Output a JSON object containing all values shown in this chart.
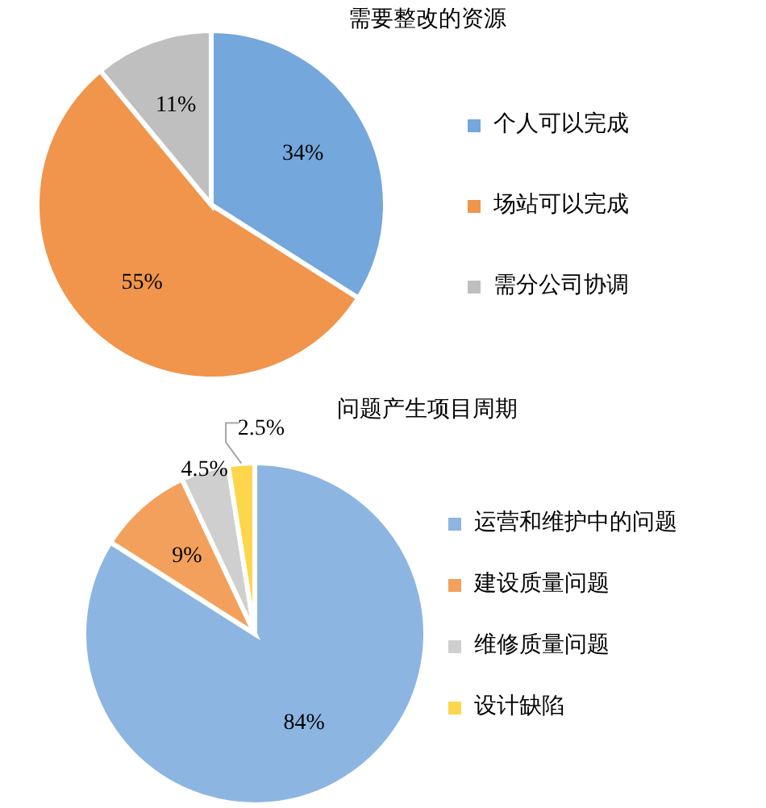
{
  "chart_data": [
    {
      "type": "pie",
      "title": "需要整改的资源",
      "categories": [
        "个人可以完成",
        "场站可以完成",
        "需分公司协调"
      ],
      "values": [
        34,
        55,
        11
      ],
      "colors": [
        "#74a7db",
        "#f0954b",
        "#bfbfbf"
      ],
      "value_labels": [
        "34%",
        "55%",
        "11%"
      ],
      "legend": "right"
    },
    {
      "type": "pie",
      "title": "问题产生项目周期",
      "categories": [
        "运营和维护中的问题",
        "建设质量问题",
        "维修质量问题",
        "设计缺陷"
      ],
      "values": [
        84,
        9,
        4.5,
        2.5
      ],
      "colors": [
        "#8db5e2",
        "#f3a05c",
        "#cfcfcf",
        "#fdd64b"
      ],
      "value_labels": [
        "84%",
        "9%",
        "4.5%",
        "2.5%"
      ],
      "legend": "right"
    }
  ]
}
